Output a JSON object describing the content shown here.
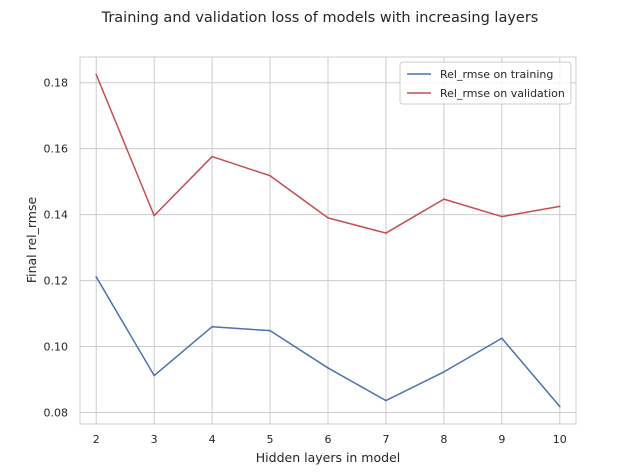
{
  "chart_data": {
    "type": "line",
    "title": "Training and validation loss of models with increasing layers",
    "xlabel": "Hidden layers in model",
    "ylabel": "Final rel_rmse",
    "x": [
      2,
      3,
      4,
      5,
      6,
      7,
      8,
      9,
      10
    ],
    "xlim": [
      1.72,
      10.28
    ],
    "ylim": [
      0.0765,
      0.1878
    ],
    "yticks": [
      0.08,
      0.1,
      0.12,
      0.14,
      0.16,
      0.18
    ],
    "ytick_labels": [
      "0.08",
      "0.10",
      "0.12",
      "0.14",
      "0.16",
      "0.18"
    ],
    "xtick_labels": [
      "2",
      "3",
      "4",
      "5",
      "6",
      "7",
      "8",
      "9",
      "10"
    ],
    "grid": true,
    "legend_position": "top-right",
    "series": [
      {
        "name": "Rel_rmse on training",
        "color": "#4c72b0",
        "values": [
          0.1211,
          0.0912,
          0.106,
          0.1048,
          0.0935,
          0.0836,
          0.0923,
          0.1025,
          0.0818
        ]
      },
      {
        "name": "Rel_rmse on validation",
        "color": "#c44e52",
        "values": [
          0.1825,
          0.1397,
          0.1576,
          0.1518,
          0.139,
          0.1344,
          0.1447,
          0.1394,
          0.1425
        ]
      }
    ]
  }
}
